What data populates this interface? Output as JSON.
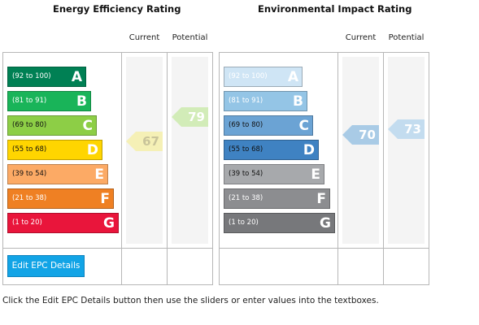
{
  "energy": {
    "title": "Energy Efficiency Rating",
    "current_label": "Current",
    "potential_label": "Potential",
    "bands": [
      {
        "range": "(92 to 100)",
        "letter": "A",
        "color": "#008054",
        "text_color": "#ffffff"
      },
      {
        "range": "(81 to 91)",
        "letter": "B",
        "color": "#19b459",
        "text_color": "#ffffff"
      },
      {
        "range": "(69 to 80)",
        "letter": "C",
        "color": "#8dce46",
        "text_color": "#111111"
      },
      {
        "range": "(55 to 68)",
        "letter": "D",
        "color": "#ffd500",
        "text_color": "#111111"
      },
      {
        "range": "(39 to 54)",
        "letter": "E",
        "color": "#fcaa65",
        "text_color": "#111111"
      },
      {
        "range": "(21 to 38)",
        "letter": "F",
        "color": "#ef8023",
        "text_color": "#ffffff"
      },
      {
        "range": "(1 to 20)",
        "letter": "G",
        "color": "#e9153b",
        "text_color": "#ffffff"
      }
    ],
    "current_value": "67",
    "current_color": "#f5f0b6",
    "potential_value": "79",
    "potential_color": "#d2ecb8"
  },
  "environmental": {
    "title": "Environmental Impact Rating",
    "current_label": "Current",
    "potential_label": "Potential",
    "bands": [
      {
        "range": "(92 to 100)",
        "letter": "A",
        "color": "#cfe5f5",
        "text_color": "#ffffff"
      },
      {
        "range": "(81 to 91)",
        "letter": "B",
        "color": "#94c5e6",
        "text_color": "#ffffff"
      },
      {
        "range": "(69 to 80)",
        "letter": "C",
        "color": "#6ba3d4",
        "text_color": "#111111"
      },
      {
        "range": "(55 to 68)",
        "letter": "D",
        "color": "#3f82c2",
        "text_color": "#111111"
      },
      {
        "range": "(39 to 54)",
        "letter": "E",
        "color": "#a7a9ac",
        "text_color": "#111111"
      },
      {
        "range": "(21 to 38)",
        "letter": "F",
        "color": "#8c8d90",
        "text_color": "#ffffff"
      },
      {
        "range": "(1 to 20)",
        "letter": "G",
        "color": "#77787b",
        "text_color": "#ffffff"
      }
    ],
    "current_value": "70",
    "current_color": "#a9cbe6",
    "potential_value": "73",
    "potential_color": "#c3dcef"
  },
  "edit_button_label": "Edit EPC Details",
  "footnote": "Click the Edit EPC Details button then use the sliders or enter values into the textboxes."
}
